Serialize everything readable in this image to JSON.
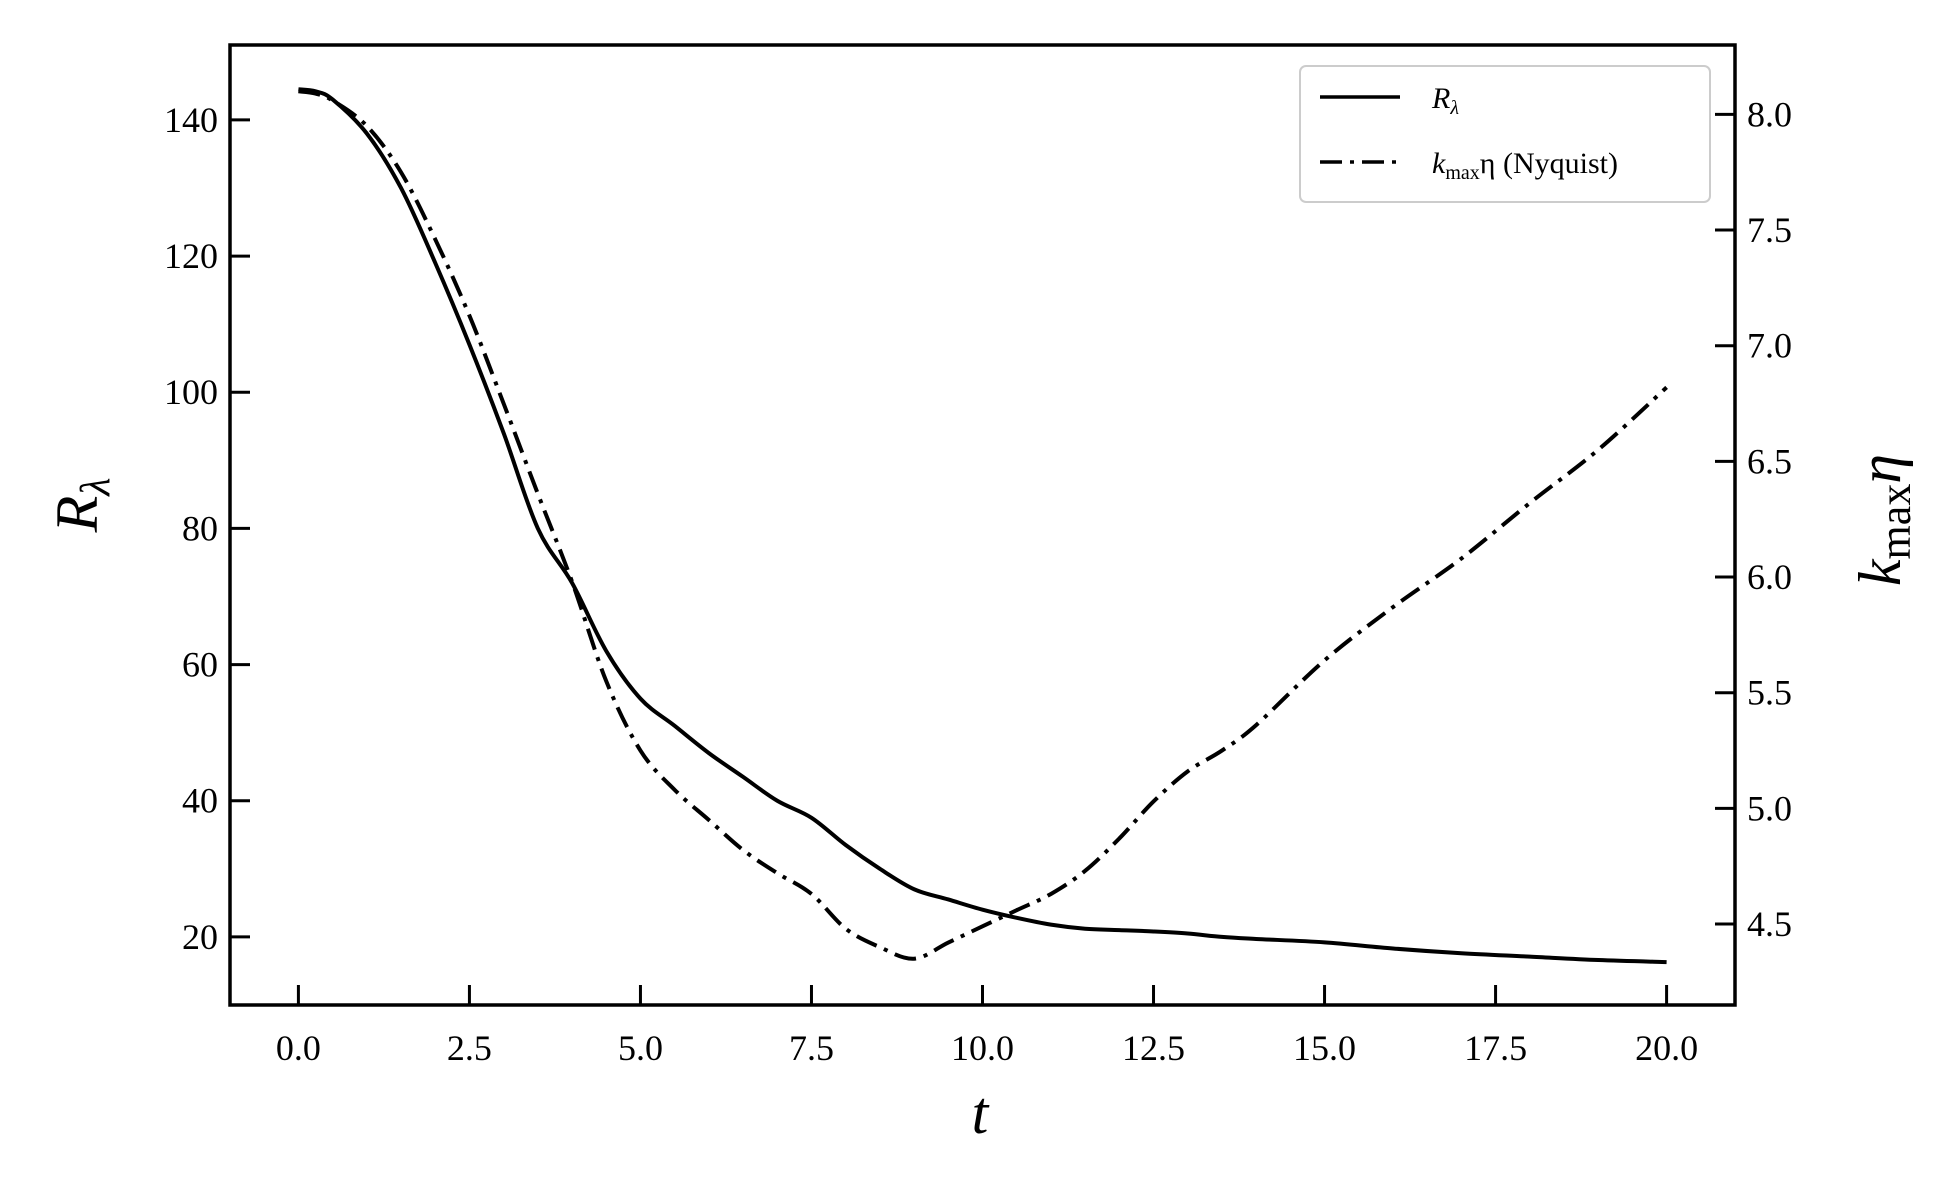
{
  "chart_data": {
    "type": "line",
    "xlabel": "t",
    "ylabel_left": {
      "main": "R",
      "sub": "λ"
    },
    "ylabel_right": {
      "pre": "k",
      "sub": "max",
      "post": "η"
    },
    "xlim": [
      -1.0,
      21.0
    ],
    "ylim_left": [
      10,
      151
    ],
    "ylim_right": [
      4.15,
      8.3
    ],
    "x_ticks": [
      0.0,
      2.5,
      5.0,
      7.5,
      10.0,
      12.5,
      15.0,
      17.5,
      20.0
    ],
    "x_tick_labels": [
      "0.0",
      "2.5",
      "5.0",
      "7.5",
      "10.0",
      "12.5",
      "15.0",
      "17.5",
      "20.0"
    ],
    "y_left_ticks": [
      20,
      40,
      60,
      80,
      100,
      120,
      140
    ],
    "y_left_tick_labels": [
      "20",
      "40",
      "60",
      "80",
      "100",
      "120",
      "140"
    ],
    "y_right_ticks": [
      4.5,
      5.0,
      5.5,
      6.0,
      6.5,
      7.0,
      7.5,
      8.0
    ],
    "y_right_tick_labels": [
      "4.5",
      "5.0",
      "5.5",
      "6.0",
      "6.5",
      "7.0",
      "7.5",
      "8.0"
    ],
    "legend_position": "top-right",
    "grid": false,
    "series": [
      {
        "name": "Rλ",
        "legend": {
          "main": "R",
          "sub": "λ",
          "post": ""
        },
        "axis": "left",
        "style": "solid",
        "color": "#000000",
        "x": [
          0.0,
          0.25,
          0.5,
          1.0,
          1.5,
          2.0,
          2.5,
          3.0,
          3.5,
          4.0,
          4.5,
          5.0,
          5.5,
          6.0,
          6.5,
          7.0,
          7.5,
          8.0,
          8.5,
          9.0,
          9.5,
          10.0,
          10.5,
          11.0,
          11.5,
          12.0,
          12.5,
          13.0,
          13.5,
          14.0,
          15.0,
          16.0,
          17.0,
          18.0,
          19.0,
          20.0
        ],
        "y": [
          144.5,
          144.2,
          143.0,
          138.0,
          130.0,
          119.0,
          107.0,
          94.0,
          80.0,
          72.0,
          62.0,
          55.0,
          51.0,
          47.0,
          43.5,
          40.0,
          37.5,
          33.5,
          30.0,
          27.0,
          25.5,
          24.0,
          22.8,
          21.8,
          21.2,
          21.0,
          20.8,
          20.5,
          20.0,
          19.7,
          19.2,
          18.3,
          17.6,
          17.1,
          16.6,
          16.3
        ]
      },
      {
        "name": "kmaxη (Nyquist)",
        "legend": {
          "main": "k",
          "sub": "max",
          "post": "η (Nyquist)"
        },
        "axis": "right",
        "style": "dashdot",
        "color": "#000000",
        "x": [
          0.0,
          0.25,
          0.5,
          1.0,
          1.5,
          2.0,
          2.5,
          3.0,
          3.5,
          4.0,
          4.5,
          5.0,
          5.5,
          6.0,
          6.5,
          7.0,
          7.5,
          8.0,
          8.5,
          9.0,
          9.5,
          10.0,
          10.5,
          11.0,
          11.5,
          12.0,
          12.5,
          13.0,
          13.5,
          14.0,
          15.0,
          16.0,
          17.0,
          18.0,
          19.0,
          20.0
        ],
        "y": [
          8.1,
          8.09,
          8.06,
          7.95,
          7.75,
          7.46,
          7.13,
          6.75,
          6.36,
          5.98,
          5.55,
          5.25,
          5.08,
          4.95,
          4.82,
          4.72,
          4.63,
          4.48,
          4.4,
          4.35,
          4.42,
          4.49,
          4.56,
          4.63,
          4.73,
          4.87,
          5.03,
          5.16,
          5.25,
          5.36,
          5.64,
          5.87,
          6.08,
          6.32,
          6.55,
          6.82
        ]
      }
    ]
  }
}
